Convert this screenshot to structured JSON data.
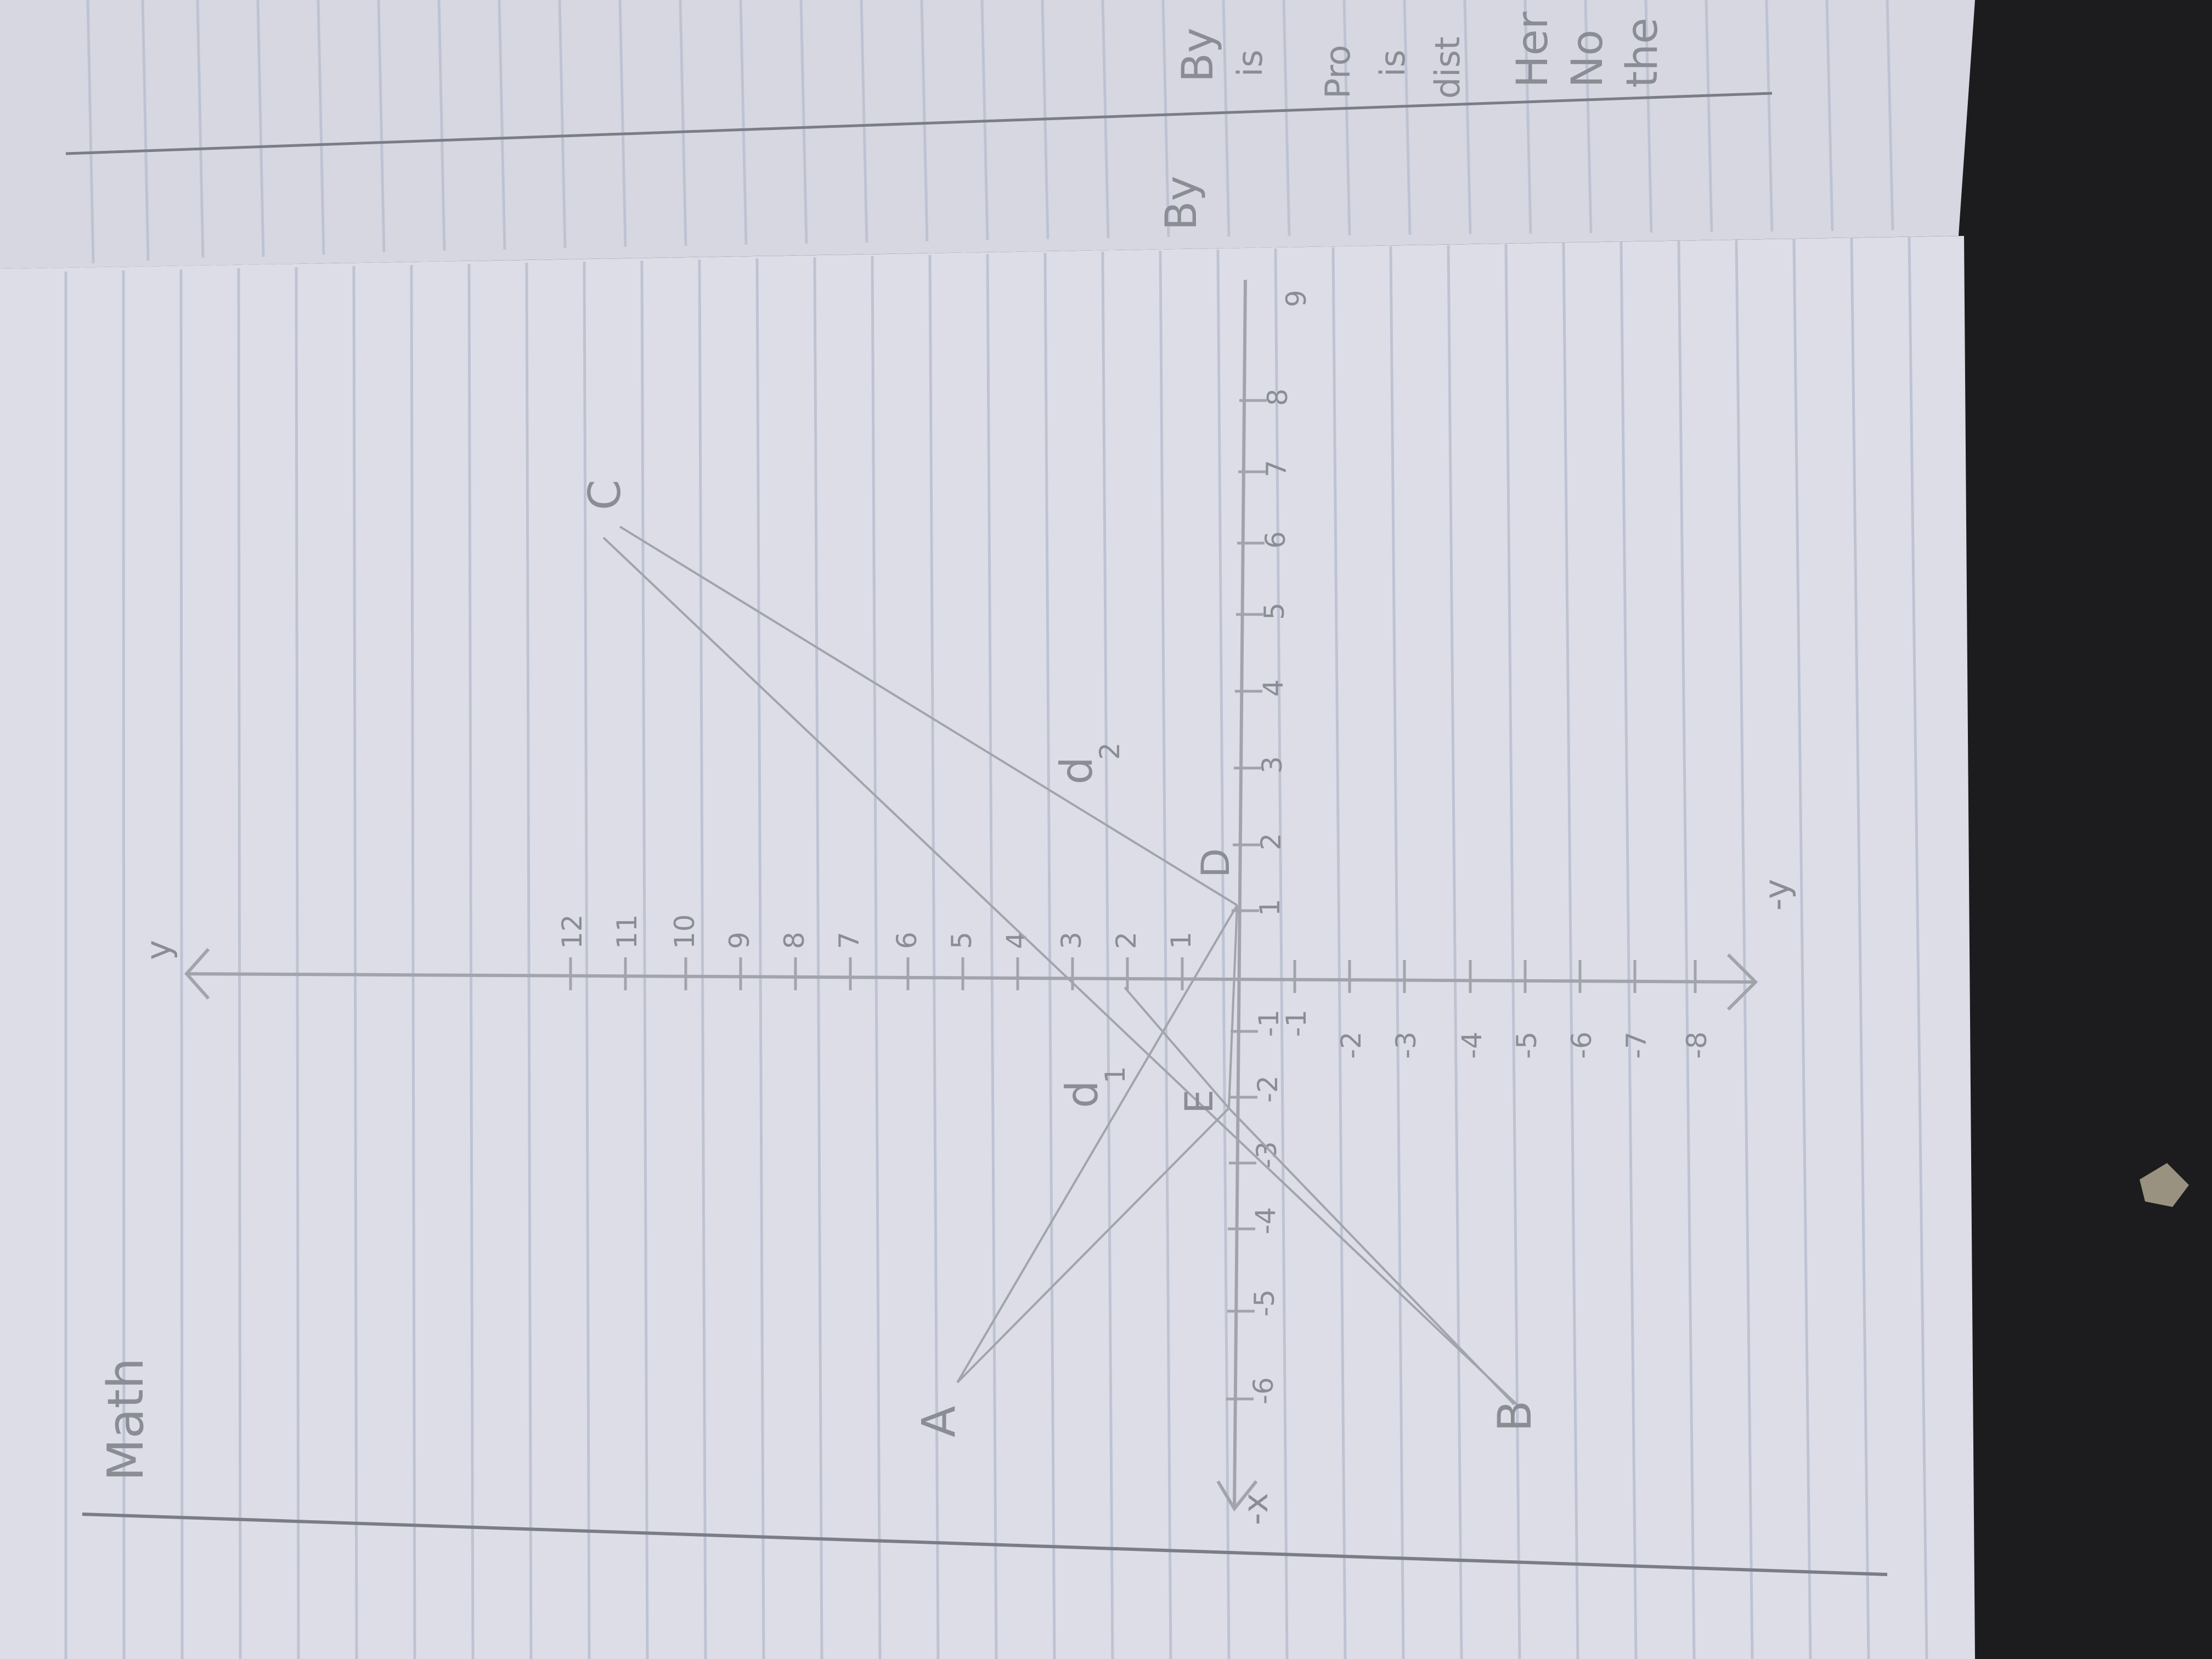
{
  "colors": {
    "table": "#1c1b1e",
    "paper": "#dcdde6",
    "paper_upper": "#d6d7e0",
    "ruling": "#bec3d3",
    "margin": "#7b7d86",
    "pencil": "#a2a4ac",
    "writing": "#8b8d95"
  },
  "page_header": {
    "subject": "Math"
  },
  "axes": {
    "x_pos_label": "",
    "x_neg_label": "-x",
    "y_pos_label": "y",
    "y_neg_label": "-y",
    "x_tick_labels": [
      "-6",
      "-5",
      "-4",
      "-3",
      "-2",
      "-1",
      "1",
      "2",
      "3",
      "4",
      "5",
      "6",
      "7",
      "8",
      "9"
    ],
    "y_tick_labels_pos": [
      "1",
      "2",
      "3",
      "4",
      "5",
      "6",
      "7",
      "8",
      "9",
      "10",
      "11",
      "12"
    ],
    "y_tick_labels_neg": [
      "-1",
      "-2",
      "-3",
      "-4",
      "-5",
      "-6",
      "-7",
      "-8"
    ]
  },
  "points": {
    "A": "A",
    "B": "B",
    "C": "C",
    "D": "D",
    "E": "E"
  },
  "distances": {
    "d1": "d",
    "d1_sub": "1",
    "d2": "d",
    "d2_sub": "2"
  },
  "facing_page_fragments": [
    "By",
    "is",
    "Pro",
    "is",
    "dist",
    "Her",
    "No",
    "the",
    "By"
  ]
}
